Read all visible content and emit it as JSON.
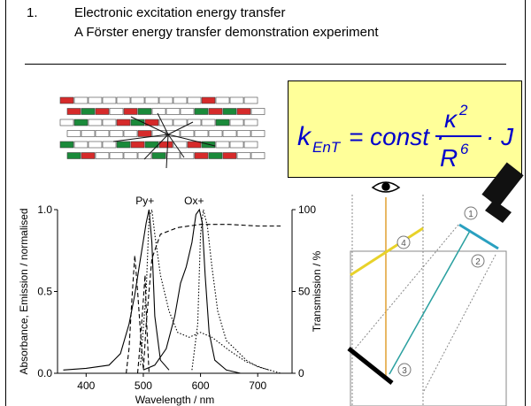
{
  "header": {
    "number": "1.",
    "line1": "Electronic excitation energy transfer",
    "line2": "A Förster energy transfer demonstration experiment"
  },
  "formula": {
    "k": "k",
    "k_sub": "EnT",
    "eq": "= const ·",
    "numerator": "κ",
    "num_exp": "2",
    "denominator": "R",
    "den_exp": "6",
    "tail": "· J"
  },
  "chart_data": {
    "type": "line",
    "x_range": [
      350,
      760
    ],
    "y_left_range": [
      0,
      1.0
    ],
    "y_right_range": [
      0,
      100
    ],
    "x_ticks": [
      "400",
      "500",
      "600",
      "700"
    ],
    "y_left_ticks": [
      "0.0",
      "0.5",
      "1.0"
    ],
    "y_right_ticks": [
      "0",
      "50",
      "100"
    ],
    "xlabel": "Wavelength / nm",
    "ylabel_left": "Absorbance, Emission / normalised",
    "ylabel_right": "Transmission / %",
    "peak_labels": [
      "Py+",
      "Ox+"
    ],
    "series": [
      {
        "style": "solid",
        "x": [
          360,
          400,
          440,
          460,
          475,
          485,
          495,
          505,
          510,
          515,
          520,
          530,
          545
        ],
        "y": [
          0.02,
          0.03,
          0.05,
          0.12,
          0.3,
          0.48,
          0.7,
          0.92,
          1.0,
          0.8,
          0.35,
          0.08,
          0.02
        ]
      },
      {
        "style": "solid",
        "x": [
          500,
          520,
          540,
          555,
          565,
          575,
          585,
          592,
          598,
          603,
          608,
          615,
          625,
          645,
          670
        ],
        "y": [
          0.02,
          0.05,
          0.15,
          0.35,
          0.55,
          0.65,
          0.8,
          0.97,
          1.0,
          0.92,
          0.6,
          0.25,
          0.08,
          0.02,
          0.0
        ]
      },
      {
        "style": "dotted",
        "x": [
          495,
          505,
          510,
          515,
          520,
          530,
          545,
          560,
          580,
          600,
          620,
          650,
          680,
          710,
          740
        ],
        "y": [
          0.05,
          0.5,
          0.95,
          1.0,
          0.85,
          0.6,
          0.38,
          0.25,
          0.22,
          0.25,
          0.22,
          0.14,
          0.07,
          0.03,
          0.0
        ]
      },
      {
        "style": "dotted",
        "x": [
          585,
          595,
          600,
          605,
          612,
          620,
          630,
          645,
          660,
          680,
          700,
          720
        ],
        "y": [
          0.02,
          0.3,
          0.85,
          1.0,
          0.9,
          0.65,
          0.38,
          0.2,
          0.15,
          0.08,
          0.04,
          0.02
        ]
      },
      {
        "style": "dashed",
        "x": [
          470,
          475,
          480,
          485,
          490,
          495,
          500,
          505,
          515,
          530,
          560,
          600,
          650,
          700,
          740
        ],
        "y": [
          0.0,
          0.15,
          0.45,
          0.72,
          0.5,
          0.25,
          0.02,
          0.3,
          0.7,
          0.85,
          0.89,
          0.91,
          0.91,
          0.9,
          0.9
        ]
      },
      {
        "style": "dashed",
        "x": [
          490,
          495,
          500,
          503,
          506,
          510
        ],
        "y": [
          0.0,
          0.2,
          0.45,
          0.6,
          0.3,
          0.0
        ]
      }
    ]
  }
}
